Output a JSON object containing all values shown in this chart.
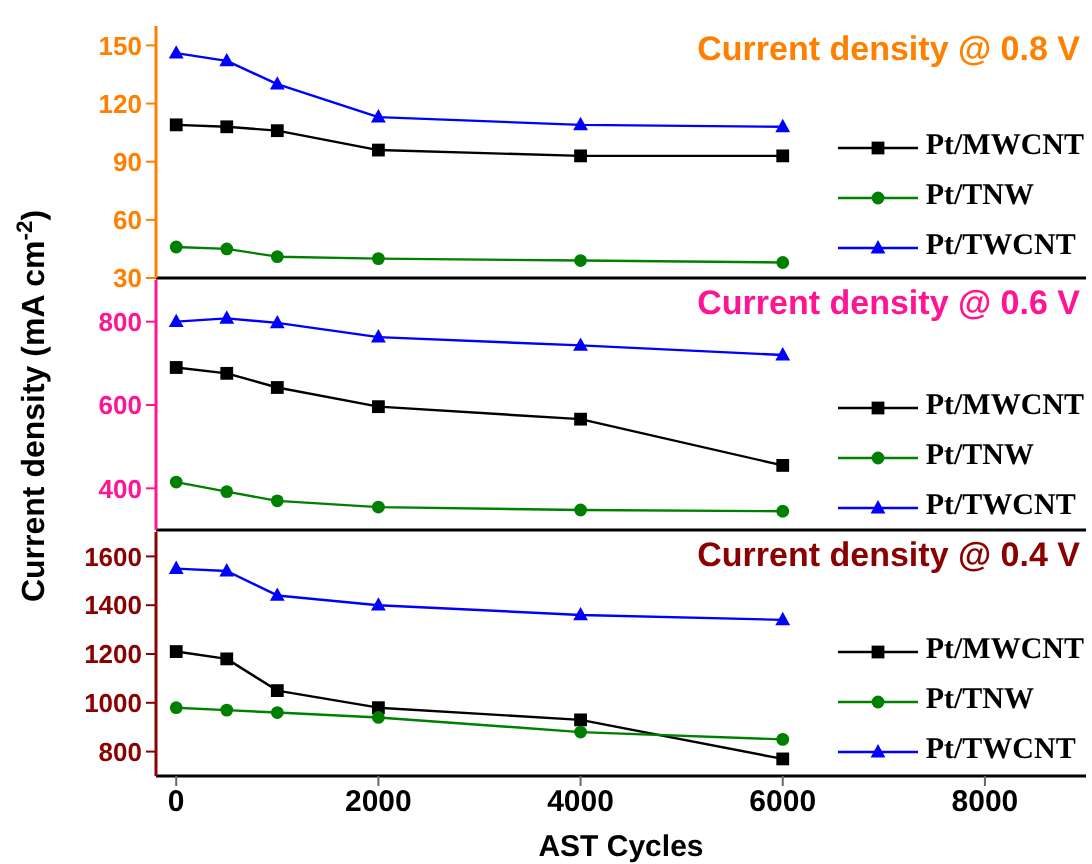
{
  "chart_data": [
    {
      "type": "line",
      "title": "Current density @ 0.8 V",
      "x": [
        0,
        500,
        1000,
        2000,
        4000,
        6000
      ],
      "xlim": [
        -200,
        9000
      ],
      "xticks": [
        0,
        2000,
        4000,
        6000,
        8000
      ],
      "ylim": [
        30,
        160
      ],
      "yticks": [
        30,
        60,
        90,
        120,
        150
      ],
      "tick_labels": "y",
      "legend": "right",
      "series": [
        {
          "name": "Pt/MWCNT",
          "color": "#000000",
          "marker": "square",
          "values": [
            109,
            108,
            106,
            96,
            93,
            93
          ]
        },
        {
          "name": "Pt/TNW",
          "color": "#008000",
          "marker": "circle",
          "values": [
            46,
            45,
            41,
            40,
            39,
            38
          ]
        },
        {
          "name": "Pt/TWCNT",
          "color": "#0000ff",
          "marker": "triangle",
          "values": [
            146,
            142,
            130,
            113,
            109,
            108
          ]
        }
      ]
    },
    {
      "type": "line",
      "title": "Current density @ 0.6 V",
      "ylabel": "Current density (mA cm$^{-2}$)",
      "x": [
        0,
        500,
        1000,
        2000,
        4000,
        6000
      ],
      "xlim": [
        -200,
        9000
      ],
      "xticks": [
        0,
        2000,
        4000,
        6000,
        8000
      ],
      "ylim": [
        300,
        900
      ],
      "yticks": [
        400,
        600,
        800
      ],
      "tick_labels": "y",
      "legend": "right",
      "series": [
        {
          "name": "Pt/MWCNT",
          "color": "#000000",
          "marker": "square",
          "values": [
            690,
            676,
            642,
            596,
            566,
            455
          ]
        },
        {
          "name": "Pt/TNW",
          "color": "#008000",
          "marker": "circle",
          "values": [
            415,
            392,
            370,
            355,
            348,
            345
          ]
        },
        {
          "name": "Pt/TWCNT",
          "color": "#0000ff",
          "marker": "triangle",
          "values": [
            800,
            808,
            797,
            763,
            743,
            720
          ]
        }
      ]
    },
    {
      "type": "line",
      "title": "Current density @ 0.4 V",
      "xlabel": "AST Cycles",
      "x": [
        0,
        500,
        1000,
        2000,
        4000,
        6000
      ],
      "xlim": [
        -200,
        9000
      ],
      "xticks": [
        0,
        2000,
        4000,
        6000,
        8000
      ],
      "ylim": [
        700,
        1700
      ],
      "yticks": [
        800,
        1000,
        1200,
        1400,
        1600
      ],
      "legend": "right",
      "series": [
        {
          "name": "Pt/MWCNT",
          "color": "#000000",
          "marker": "square",
          "values": [
            1210,
            1180,
            1050,
            980,
            930,
            770
          ]
        },
        {
          "name": "Pt/TNW",
          "color": "#008000",
          "marker": "circle",
          "values": [
            980,
            970,
            960,
            940,
            880,
            850
          ]
        },
        {
          "name": "Pt/TWCNT",
          "color": "#0000ff",
          "marker": "triangle",
          "values": [
            1550,
            1540,
            1440,
            1400,
            1360,
            1340
          ]
        }
      ]
    }
  ]
}
